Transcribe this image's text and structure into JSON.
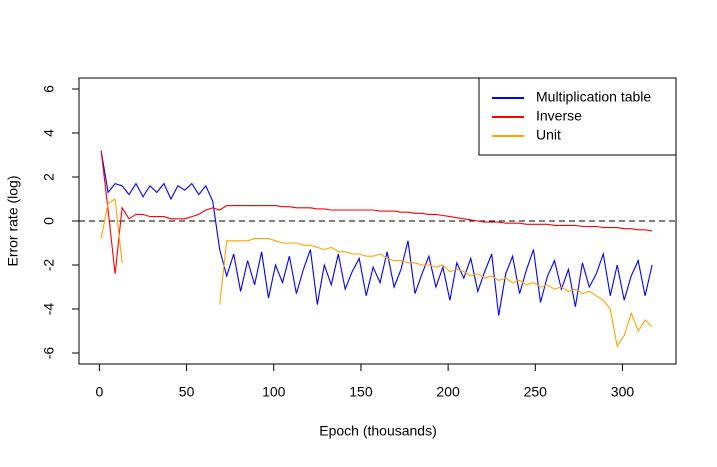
{
  "chart_data": {
    "type": "line",
    "xlabel": "Epoch (thousands)",
    "ylabel": "Error rate (log)",
    "x": [
      1,
      5,
      9,
      13,
      17,
      21,
      25,
      29,
      33,
      37,
      41,
      45,
      49,
      53,
      57,
      61,
      65,
      69,
      73,
      77,
      81,
      85,
      89,
      93,
      97,
      101,
      105,
      109,
      113,
      117,
      121,
      125,
      129,
      133,
      137,
      141,
      145,
      149,
      153,
      157,
      161,
      165,
      169,
      173,
      177,
      181,
      185,
      189,
      193,
      197,
      201,
      205,
      209,
      213,
      217,
      221,
      225,
      229,
      233,
      237,
      241,
      245,
      249,
      253,
      257,
      261,
      265,
      269,
      273,
      277,
      281,
      285,
      289,
      293,
      297,
      301,
      305,
      309,
      313,
      317
    ],
    "series": [
      {
        "name": "Multiplication table",
        "color": "#0000ff",
        "values": [
          3.2,
          1.3,
          1.7,
          1.6,
          1.2,
          1.7,
          1.1,
          1.6,
          1.3,
          1.7,
          1.0,
          1.6,
          1.4,
          1.7,
          1.2,
          1.6,
          0.9,
          -1.3,
          -2.5,
          -1.5,
          -3.2,
          -1.8,
          -2.9,
          -1.4,
          -3.5,
          -2.0,
          -2.8,
          -1.6,
          -3.3,
          -2.2,
          -1.3,
          -3.8,
          -2.0,
          -2.9,
          -1.5,
          -3.1,
          -2.3,
          -1.7,
          -3.4,
          -2.1,
          -2.8,
          -1.4,
          -3.0,
          -2.2,
          -0.9,
          -3.3,
          -2.4,
          -1.6,
          -3.0,
          -2.1,
          -3.6,
          -1.9,
          -2.6,
          -1.7,
          -3.2,
          -2.3,
          -1.5,
          -4.3,
          -2.4,
          -1.6,
          -3.3,
          -2.2,
          -1.3,
          -3.7,
          -2.5,
          -1.8,
          -3.1,
          -2.2,
          -3.9,
          -1.9,
          -3.0,
          -2.4,
          -1.5,
          -3.4,
          -2.0,
          -3.6,
          -2.5,
          -1.8,
          -3.4,
          -2.0
        ]
      },
      {
        "name": "Inverse",
        "color": "#ff0000",
        "values": [
          3.2,
          0.5,
          -2.4,
          0.6,
          0.1,
          0.3,
          0.3,
          0.2,
          0.2,
          0.2,
          0.1,
          0.1,
          0.1,
          0.2,
          0.3,
          0.5,
          0.6,
          0.5,
          0.7,
          0.7,
          0.7,
          0.7,
          0.7,
          0.7,
          0.7,
          0.7,
          0.65,
          0.65,
          0.6,
          0.6,
          0.6,
          0.55,
          0.55,
          0.5,
          0.5,
          0.5,
          0.5,
          0.5,
          0.5,
          0.5,
          0.45,
          0.45,
          0.45,
          0.4,
          0.4,
          0.35,
          0.35,
          0.3,
          0.3,
          0.25,
          0.2,
          0.15,
          0.1,
          0.05,
          0,
          -0.05,
          -0.05,
          -0.05,
          -0.1,
          -0.1,
          -0.1,
          -0.15,
          -0.15,
          -0.15,
          -0.15,
          -0.2,
          -0.2,
          -0.2,
          -0.2,
          -0.25,
          -0.25,
          -0.25,
          -0.3,
          -0.3,
          -0.3,
          -0.35,
          -0.35,
          -0.4,
          -0.4,
          -0.45
        ]
      },
      {
        "name": "Unit",
        "color": "#ffa500",
        "values": [
          -0.8,
          0.8,
          1.0,
          -1.9,
          null,
          null,
          null,
          null,
          null,
          null,
          null,
          null,
          null,
          null,
          null,
          null,
          null,
          -3.8,
          -0.9,
          -0.9,
          -0.9,
          -0.9,
          -0.8,
          -0.8,
          -0.8,
          -0.9,
          -1.0,
          -1.0,
          -1.0,
          -1.1,
          -1.1,
          -1.2,
          -1.3,
          -1.2,
          -1.4,
          -1.4,
          -1.5,
          -1.5,
          -1.6,
          -1.6,
          -1.5,
          -1.7,
          -1.8,
          -1.8,
          -1.9,
          -1.9,
          -2.0,
          -2.0,
          -2.1,
          -2.0,
          -2.3,
          -2.2,
          -2.3,
          -2.5,
          -2.4,
          -2.6,
          -2.5,
          -2.7,
          -2.6,
          -2.8,
          -2.7,
          -2.9,
          -2.8,
          -3.0,
          -2.9,
          -3.1,
          -3.0,
          -3.2,
          -3.1,
          -3.3,
          -3.2,
          -3.4,
          -3.6,
          -4.0,
          -5.7,
          -5.2,
          -4.2,
          -5.0,
          -4.5,
          -4.8
        ]
      }
    ],
    "hline": 0,
    "xlim": [
      -11.7,
      330.7
    ],
    "xticks": [
      0,
      50,
      100,
      150,
      200,
      250,
      300
    ],
    "ylim": [
      -6.5,
      6.5
    ],
    "yticks": [
      -6,
      -4,
      -2,
      0,
      2,
      4,
      6
    ],
    "legend": "top-right"
  }
}
